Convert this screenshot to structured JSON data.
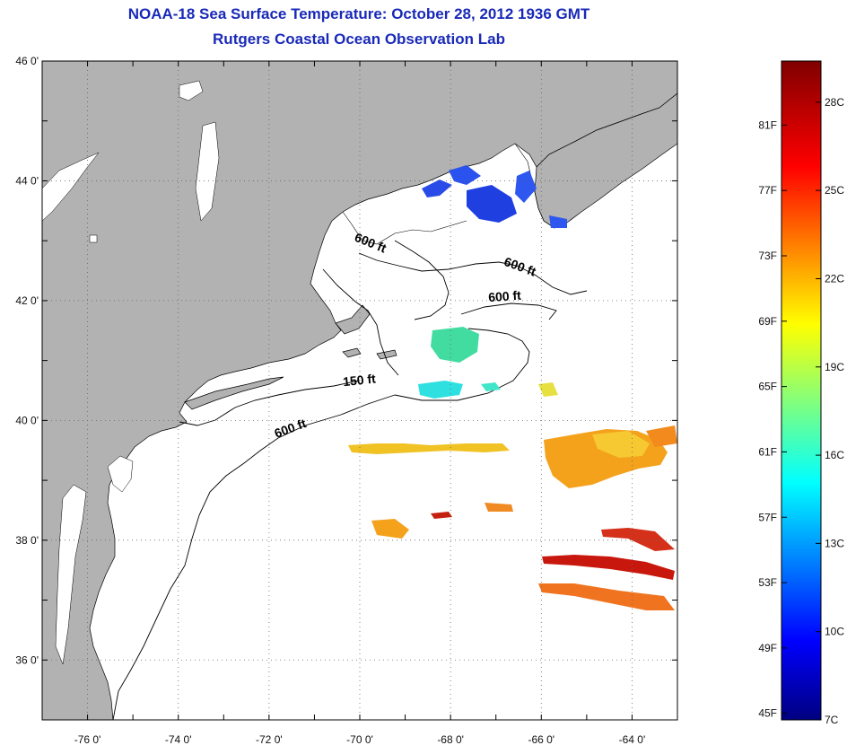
{
  "header": {
    "title": "NOAA-18 Sea Surface Temperature:  October 28, 2012 1936 GMT",
    "subtitle": "Rutgers Coastal Ocean Observation Lab"
  },
  "map": {
    "lon_range": [
      -77,
      -63
    ],
    "lat_range": [
      35,
      46
    ],
    "x_ticks": [
      "-76 0'",
      "-74 0'",
      "-72 0'",
      "-70 0'",
      "-68 0'",
      "-66 0'",
      "-64 0'"
    ],
    "y_ticks": [
      "46 0'",
      "44 0'",
      "42 0'",
      "40 0'",
      "38 0'",
      "36 0'"
    ],
    "land_color": "#b2b2b2",
    "ocean_color": "#ffffff",
    "isobath_labels": [
      {
        "text": "600 ft",
        "lon": -69.8,
        "lat": 42.9
      },
      {
        "text": "600 ft",
        "lon": -66.5,
        "lat": 42.5
      },
      {
        "text": "600 ft",
        "lon": -66.8,
        "lat": 42.0
      },
      {
        "text": "150 ft",
        "lon": -70.0,
        "lat": 40.6
      },
      {
        "text": "600 ft",
        "lon": -71.5,
        "lat": 39.8
      }
    ]
  },
  "colorbar": {
    "f_labels": [
      "81F",
      "77F",
      "73F",
      "69F",
      "65F",
      "61F",
      "57F",
      "53F",
      "49F",
      "45F"
    ],
    "c_labels": [
      "28C",
      "25C",
      "22C",
      "19C",
      "16C",
      "13C",
      "10C",
      "7C"
    ],
    "colormap": "jet",
    "min_c": 7,
    "max_c": 29.4
  }
}
